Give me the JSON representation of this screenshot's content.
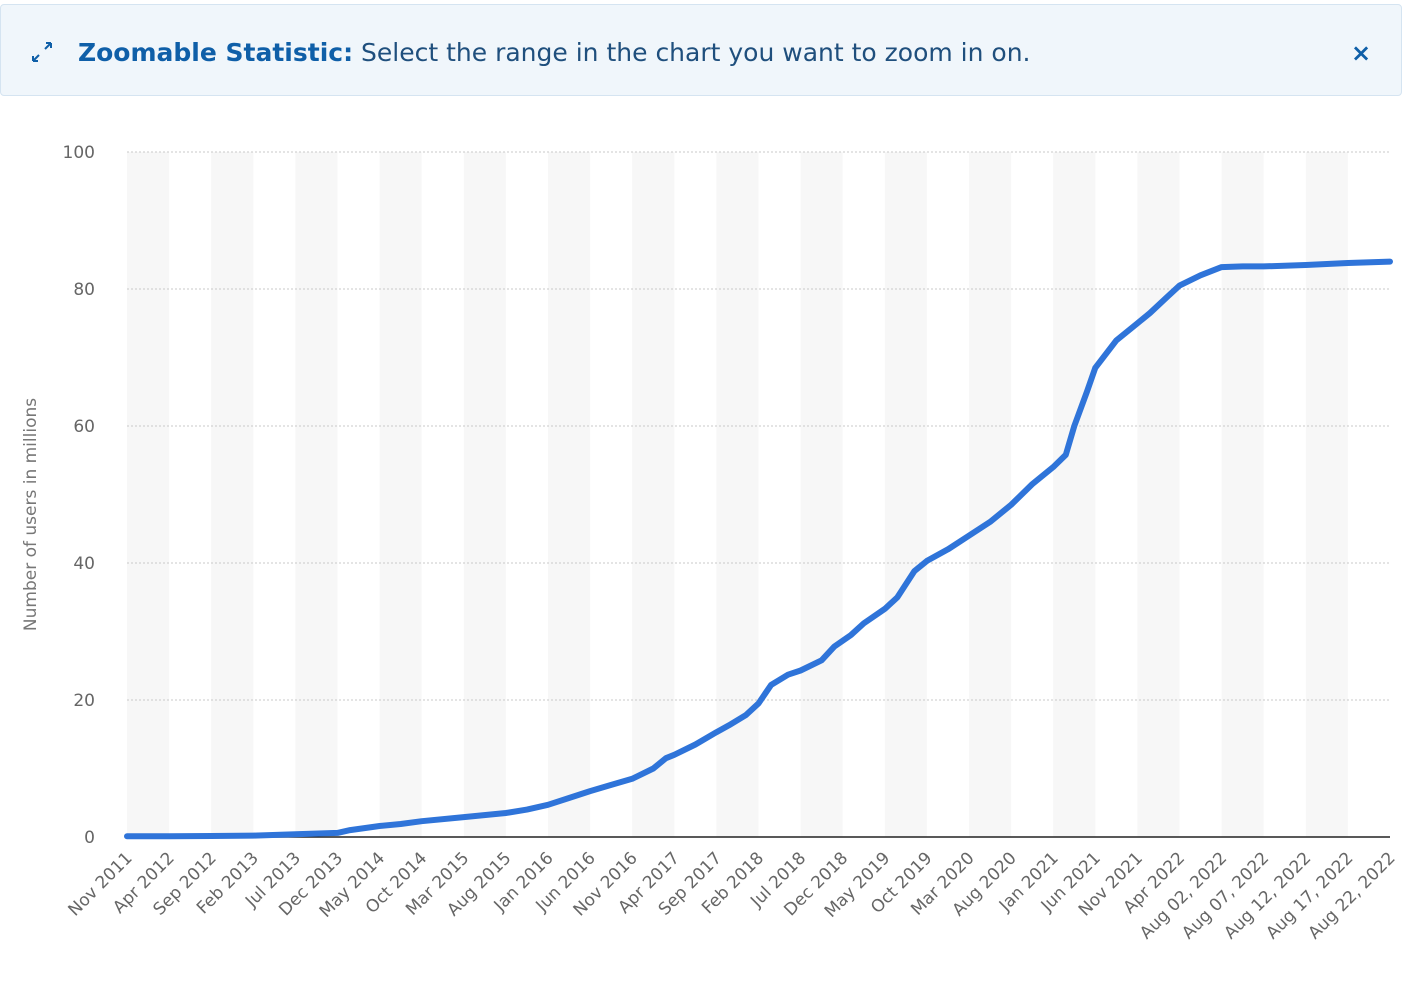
{
  "banner": {
    "icon": "expand-arrows-icon",
    "title": "Zoomable Statistic:",
    "message": " Select the range in the chart you want to zoom in on.",
    "close_label": "×"
  },
  "colors": {
    "line": "#2f74d9",
    "banner_bg": "#f0f6fb",
    "band": "#f7f7f7",
    "grid": "#c8c8c8"
  },
  "chart_data": {
    "type": "line",
    "title": "",
    "xlabel": "",
    "ylabel": "Number of users in millions",
    "ylim": [
      0,
      100
    ],
    "y_ticks": [
      0,
      20,
      40,
      60,
      80,
      100
    ],
    "grid": true,
    "legend": "none",
    "categories": [
      "Nov 2011",
      "Apr 2012",
      "Sep 2012",
      "Feb 2013",
      "Jul 2013",
      "Dec 2013",
      "May 2014",
      "Oct 2014",
      "Mar 2015",
      "Aug 2015",
      "Jan 2016",
      "Jun 2016",
      "Nov 2016",
      "Apr 2017",
      "Sep 2017",
      "Feb 2018",
      "Jul 2018",
      "Dec 2018",
      "May 2019",
      "Oct 2019",
      "Mar 2020",
      "Aug 2020",
      "Jan 2021",
      "Jun 2021",
      "Nov 2021",
      "Apr 2022",
      "Aug 02, 2022",
      "Aug 07, 2022",
      "Aug 12, 2022",
      "Aug 17, 2022",
      "Aug 22, 2022"
    ],
    "series": [
      {
        "values": [
          [
            0,
            0.1
          ],
          [
            1,
            0.1
          ],
          [
            2,
            0.15
          ],
          [
            3,
            0.2
          ],
          [
            4,
            0.4
          ],
          [
            5,
            0.6
          ],
          [
            5.3,
            1.0
          ],
          [
            6,
            1.6
          ],
          [
            6.5,
            1.9
          ],
          [
            7,
            2.3
          ],
          [
            8,
            2.9
          ],
          [
            9,
            3.5
          ],
          [
            9.5,
            4.0
          ],
          [
            10,
            4.7
          ],
          [
            10.5,
            5.7
          ],
          [
            11,
            6.7
          ],
          [
            11.5,
            7.6
          ],
          [
            12,
            8.5
          ],
          [
            12.5,
            10.0
          ],
          [
            12.8,
            11.5
          ],
          [
            13,
            12.0
          ],
          [
            13.5,
            13.5
          ],
          [
            14,
            15.3
          ],
          [
            14.3,
            16.3
          ],
          [
            14.7,
            17.8
          ],
          [
            15,
            19.5
          ],
          [
            15.3,
            22.2
          ],
          [
            15.7,
            23.7
          ],
          [
            16,
            24.3
          ],
          [
            16.5,
            25.8
          ],
          [
            16.8,
            27.8
          ],
          [
            17.2,
            29.5
          ],
          [
            17.5,
            31.2
          ],
          [
            18,
            33.3
          ],
          [
            18.3,
            35.0
          ],
          [
            18.7,
            38.8
          ],
          [
            19,
            40.3
          ],
          [
            19.5,
            42.0
          ],
          [
            20,
            44.0
          ],
          [
            20.5,
            46.0
          ],
          [
            21,
            48.5
          ],
          [
            21.5,
            51.5
          ],
          [
            22,
            54.0
          ],
          [
            22.3,
            55.8
          ],
          [
            22.5,
            60.0
          ],
          [
            22.8,
            65.0
          ],
          [
            23,
            68.5
          ],
          [
            23.5,
            72.5
          ],
          [
            24,
            75.0
          ],
          [
            24.3,
            76.5
          ],
          [
            24.7,
            78.8
          ],
          [
            25,
            80.5
          ],
          [
            25.5,
            82.0
          ],
          [
            26,
            83.2
          ],
          [
            26.5,
            83.3
          ],
          [
            27,
            83.3
          ],
          [
            28,
            83.5
          ],
          [
            29,
            83.8
          ],
          [
            30,
            84.0
          ]
        ]
      }
    ]
  }
}
